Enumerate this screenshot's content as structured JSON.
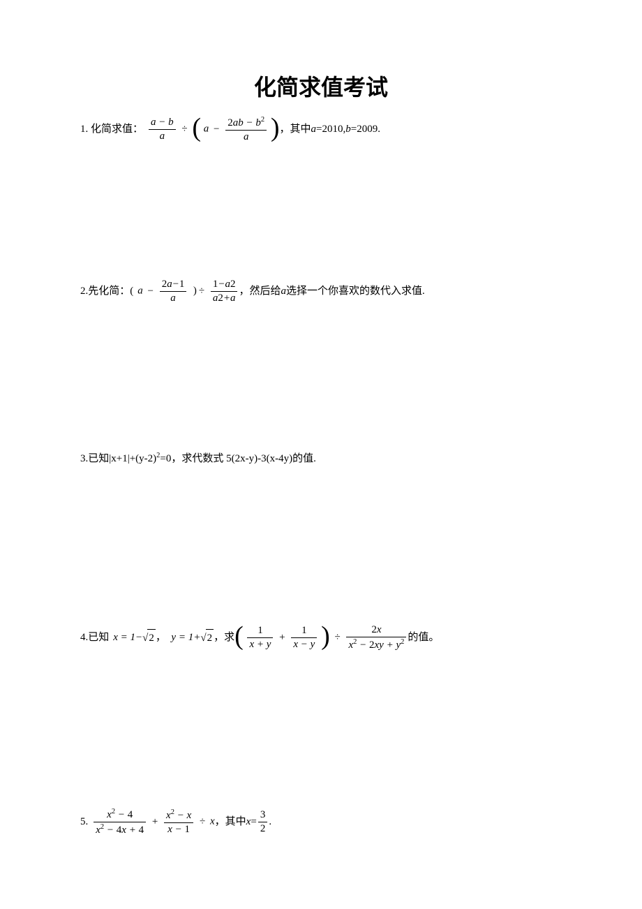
{
  "title": "化简求值考试",
  "problems": {
    "p1": {
      "label": "1. 化简求值：",
      "tail_text": "，其中 ",
      "a_eq": "a",
      "a_val": "=2010, ",
      "b_eq": "b",
      "b_val": "=2009."
    },
    "p2": {
      "label": "2.先化简：(",
      "a": "a",
      "tail": "，然后给 ",
      "a2": "a",
      "tail2": " 选择一个你喜欢的数代入求值."
    },
    "p3": {
      "text": "3.已知|x+1|+(y-2)",
      "exp": "2",
      "text2": "=0，求代数式 5(2x-y)-3(x-4y)的值."
    },
    "p4": {
      "label": "4.已知 ",
      "x_eq": "x = 1−",
      "sqrt2_a": "2",
      "comma": "，",
      "y_eq": "y = 1+",
      "sqrt2_b": "2",
      "mid": "，求",
      "tail": "的值。"
    },
    "p5": {
      "label": "5. ",
      "tail": "，其中 ",
      "x": "x",
      "eq": " = ",
      "frac_num": "3",
      "frac_den": "2",
      "period": "."
    }
  },
  "colors": {
    "text": "#000000",
    "background": "#ffffff"
  },
  "fonts": {
    "title_size": 32,
    "body_size": 15
  }
}
